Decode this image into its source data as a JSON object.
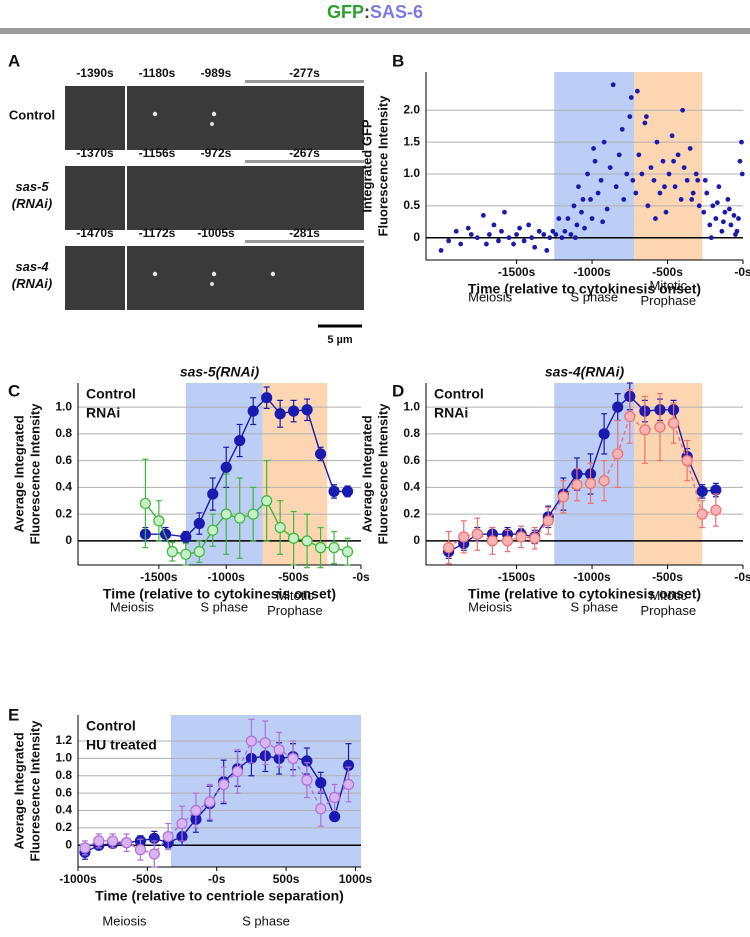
{
  "figure_title": {
    "parts": [
      {
        "text": "GFP",
        "color": "#2ca02c"
      },
      {
        "text": ":",
        "color": "#444444"
      },
      {
        "text": "SAS-6",
        "color": "#7b7be6"
      }
    ]
  },
  "panel_a": {
    "panel": "A",
    "rows": [
      {
        "label": [
          "Control"
        ],
        "color": "#1a1ab0",
        "times": [
          "-1390s",
          "-1180s",
          "-989s",
          "-277s"
        ]
      },
      {
        "label": [
          "sas-5",
          "(RNAi)"
        ],
        "color": "#3cb83c",
        "times": [
          "-1370s",
          "-1156s",
          "-972s",
          "-267s"
        ]
      },
      {
        "label": [
          "sas-4",
          "(RNAi)"
        ],
        "color": "#f07070",
        "times": [
          "-1470s",
          "-1172s",
          "-1005s",
          "-281s"
        ]
      }
    ],
    "scale_bar": "5 µm"
  },
  "chart_data": [
    {
      "type": "scatter",
      "panel": "B",
      "ylabel": [
        "Integrated GFP",
        "Fluorescence Intensity"
      ],
      "xlabel": "Time (relative to cytokinesis onset)",
      "xlim": [
        -2100,
        0
      ],
      "ylim": [
        -0.35,
        2.6
      ],
      "xticks": [
        {
          "value": -1500,
          "label": "-1500s"
        },
        {
          "value": -1000,
          "label": "-1000s"
        },
        {
          "value": -500,
          "label": "-500s"
        },
        {
          "value": 0,
          "label": "-0s"
        }
      ],
      "yticks": [
        0,
        0.5,
        {
          "value": 1,
          "label": "1.0"
        },
        {
          "value": 1.5,
          "label": "1.5"
        },
        {
          "value": 2,
          "label": "2.0"
        }
      ],
      "grid": true,
      "reference_line": 0,
      "phases": [
        {
          "label": [
            "Meiosis"
          ],
          "text_color": "#111111"
        },
        {
          "label": [
            "S phase"
          ],
          "start": -1250,
          "end": -720,
          "color": "#bccdf6",
          "text_color": "#3a5fc8"
        },
        {
          "label": [
            "Mitotic",
            "Prophase"
          ],
          "start": -720,
          "end": -270,
          "color": "#fcd6b2",
          "text_color": "#e07020"
        }
      ],
      "series": [
        {
          "color": "#1a1ab0",
          "x": [
            -2000,
            -1950,
            -1900,
            -1870,
            -1820,
            -1800,
            -1760,
            -1720,
            -1700,
            -1680,
            -1650,
            -1620,
            -1600,
            -1580,
            -1550,
            -1520,
            -1500,
            -1480,
            -1450,
            -1420,
            -1400,
            -1380,
            -1350,
            -1320,
            -1300,
            -1280,
            -1260,
            -1240,
            -1220,
            -1200,
            -1180,
            -1160,
            -1140,
            -1120,
            -1100,
            -1090,
            -1070,
            -1050,
            -1030,
            -1010,
            -1000,
            -980,
            -960,
            -940,
            -920,
            -900,
            -880,
            -860,
            -840,
            -820,
            -800,
            -790,
            -770,
            -750,
            -740,
            -730,
            -1110,
            -1060,
            -990,
            -930,
            -710,
            -690,
            -670,
            -650,
            -630,
            -610,
            -590,
            -570,
            -550,
            -530,
            -510,
            -490,
            -470,
            -450,
            -430,
            -410,
            -390,
            -370,
            -350,
            -330,
            -310,
            -290,
            -700,
            -640,
            -580,
            -520,
            -460,
            -400,
            -340,
            -300,
            -260,
            -240,
            -220,
            -200,
            -180,
            -160,
            -140,
            -120,
            -100,
            -80,
            -60,
            -40,
            -20,
            -10,
            -250,
            -210,
            -170,
            -130,
            -90,
            -50,
            -30,
            -5
          ],
          "values": [
            -0.2,
            -0.05,
            0.1,
            -0.1,
            0.15,
            0.05,
            0.0,
            0.35,
            -0.1,
            0.05,
            0.2,
            -0.05,
            0.1,
            0.4,
            0.0,
            -0.1,
            0.05,
            0.15,
            -0.05,
            0.2,
            0.0,
            -0.15,
            0.1,
            0.05,
            -0.2,
            0.0,
            0.1,
            0.05,
            0.3,
            0.0,
            0.1,
            0.3,
            0.05,
            0.5,
            0.2,
            0.8,
            0.4,
            0.15,
            1.0,
            0.6,
            0.3,
            1.2,
            0.7,
            0.9,
            1.5,
            0.45,
            1.1,
            2.4,
            0.8,
            1.3,
            1.7,
            0.6,
            1.0,
            1.9,
            2.2,
            0.9,
            0.0,
            0.6,
            1.4,
            0.25,
            0.7,
            1.3,
            1.0,
            1.8,
            0.5,
            1.1,
            0.9,
            1.5,
            0.7,
            1.2,
            0.4,
            1.0,
            1.6,
            0.8,
            1.3,
            0.6,
            1.1,
            0.9,
            1.4,
            0.7,
            1.0,
            0.5,
            2.3,
            1.9,
            0.3,
            0.8,
            1.2,
            2.0,
            0.6,
            0.9,
            0.4,
            0.7,
            0.2,
            0.5,
            0.3,
            0.8,
            0.1,
            0.4,
            0.6,
            0.2,
            0.35,
            0.1,
            1.2,
            1.5,
            0.9,
            0.0,
            0.55,
            0.25,
            0.45,
            0.05,
            0.3,
            1.0
          ]
        }
      ]
    },
    {
      "type": "line",
      "panel": "C",
      "title": "sas-5(RNAi)",
      "title_color": "#3cb83c",
      "ylabel": [
        "Average Integrated",
        "Fluorescence Intensity"
      ],
      "xlabel": "Time (relative to cytokinesis onset)",
      "xlim": [
        -2100,
        0
      ],
      "ylim": [
        -0.18,
        1.18
      ],
      "xticks": [
        {
          "value": -1500,
          "label": "-1500s"
        },
        {
          "value": -1000,
          "label": "-1000s"
        },
        {
          "value": -500,
          "label": "-500s"
        },
        {
          "value": 0,
          "label": "-0s"
        }
      ],
      "yticks": [
        0,
        0.2,
        0.4,
        0.6,
        0.8,
        {
          "value": 1,
          "label": "1.0"
        }
      ],
      "grid": true,
      "reference_line": 0,
      "phases": [
        {
          "label": [
            "Meiosis"
          ],
          "text_color": "#111111"
        },
        {
          "label": [
            "S phase"
          ],
          "start": -1300,
          "end": -730,
          "color": "#bccdf6",
          "text_color": "#3a5fc8"
        },
        {
          "label": [
            "Mitotic",
            "Prophase"
          ],
          "start": -730,
          "end": -250,
          "color": "#fcd6b2",
          "text_color": "#e07020"
        }
      ],
      "series": [
        {
          "name": "Control",
          "color": "#1a1ab0",
          "marker_fill": "#1a1ab0",
          "line_style": "solid",
          "x": [
            -1600,
            -1450,
            -1300,
            -1200,
            -1100,
            -1000,
            -900,
            -800,
            -700,
            -600,
            -500,
            -400,
            -300,
            -200,
            -100
          ],
          "values": [
            0.05,
            0.05,
            0.03,
            0.13,
            0.35,
            0.55,
            0.75,
            0.97,
            1.07,
            0.95,
            0.97,
            0.98,
            0.65,
            0.37,
            0.37
          ],
          "errors": [
            0.05,
            0.05,
            0.04,
            0.08,
            0.12,
            0.15,
            0.12,
            0.1,
            0.08,
            0.1,
            0.08,
            0.08,
            0.05,
            0.05,
            0.04
          ]
        },
        {
          "name": "RNAi",
          "color": "#3cb83c",
          "marker_fill": "#c8f0c8",
          "line_style": "solid",
          "x": [
            -1600,
            -1500,
            -1400,
            -1300,
            -1200,
            -1100,
            -1000,
            -900,
            -800,
            -700,
            -600,
            -500,
            -400,
            -300,
            -200,
            -100
          ],
          "values": [
            0.28,
            0.15,
            -0.08,
            -0.1,
            -0.08,
            0.08,
            0.2,
            0.17,
            0.2,
            0.3,
            0.1,
            0.02,
            0.0,
            -0.05,
            -0.05,
            -0.08
          ],
          "errors": [
            0.33,
            0.15,
            0.07,
            0.08,
            0.08,
            0.12,
            0.3,
            0.3,
            0.2,
            0.3,
            0.2,
            0.2,
            0.2,
            0.15,
            0.12,
            0.1
          ]
        }
      ]
    },
    {
      "type": "line",
      "panel": "D",
      "title": "sas-4(RNAi)",
      "title_color": "#f07070",
      "ylabel": [
        "Average Integrated",
        "Fluorescence Intensity"
      ],
      "xlabel": "Time (relative to cytokinesis onset)",
      "xlim": [
        -2100,
        0
      ],
      "ylim": [
        -0.18,
        1.18
      ],
      "xticks": [
        {
          "value": -1500,
          "label": "-1500s"
        },
        {
          "value": -1000,
          "label": "-1000s"
        },
        {
          "value": -500,
          "label": "-500s"
        },
        {
          "value": 0,
          "label": "-0s"
        }
      ],
      "yticks": [
        0,
        0.2,
        0.4,
        0.6,
        0.8,
        {
          "value": 1,
          "label": "1.0"
        }
      ],
      "grid": true,
      "reference_line": 0,
      "phases": [
        {
          "label": [
            "Meiosis"
          ],
          "text_color": "#111111"
        },
        {
          "label": [
            "S phase"
          ],
          "start": -1250,
          "end": -720,
          "color": "#bccdf6",
          "text_color": "#3a5fc8"
        },
        {
          "label": [
            "Mitotic",
            "Prophase"
          ],
          "start": -720,
          "end": -270,
          "color": "#fcd6b2",
          "text_color": "#e07020"
        }
      ],
      "series": [
        {
          "name": "Control",
          "color": "#1a1ab0",
          "marker_fill": "#1a1ab0",
          "line_style": "solid",
          "x": [
            -1950,
            -1850,
            -1760,
            -1660,
            -1560,
            -1470,
            -1380,
            -1290,
            -1190,
            -1100,
            -1010,
            -920,
            -830,
            -750,
            -650,
            -550,
            -460,
            -370,
            -270,
            -180
          ],
          "values": [
            -0.08,
            -0.02,
            0.05,
            0.05,
            0.05,
            0.05,
            0.03,
            0.18,
            0.35,
            0.5,
            0.5,
            0.8,
            1.0,
            1.08,
            0.97,
            0.98,
            0.98,
            0.63,
            0.37,
            0.38
          ],
          "errors": [
            0.05,
            0.05,
            0.05,
            0.05,
            0.05,
            0.04,
            0.05,
            0.08,
            0.12,
            0.12,
            0.15,
            0.15,
            0.1,
            0.1,
            0.08,
            0.08,
            0.07,
            0.06,
            0.05,
            0.05
          ]
        },
        {
          "name": "RNAi",
          "color": "#f07070",
          "marker_fill": "#f8b4b4",
          "line_style": "dashed",
          "x": [
            -1950,
            -1850,
            -1760,
            -1660,
            -1560,
            -1470,
            -1380,
            -1290,
            -1190,
            -1100,
            -1010,
            -920,
            -830,
            -750,
            -650,
            -550,
            -460,
            -370,
            -270,
            -180
          ],
          "values": [
            -0.05,
            0.03,
            0.05,
            0.0,
            0.0,
            0.03,
            0.02,
            0.15,
            0.33,
            0.42,
            0.43,
            0.45,
            0.65,
            0.93,
            0.83,
            0.85,
            0.88,
            0.6,
            0.2,
            0.23
          ],
          "errors": [
            0.12,
            0.12,
            0.12,
            0.1,
            0.08,
            0.08,
            0.08,
            0.1,
            0.12,
            0.12,
            0.15,
            0.15,
            0.25,
            0.2,
            0.25,
            0.25,
            0.15,
            0.15,
            0.1,
            0.12
          ]
        }
      ]
    },
    {
      "type": "line",
      "panel": "E",
      "ylabel": [
        "Average Integrated",
        "Fluorescence Intensity"
      ],
      "xlabel": "Time (relative to centriole separation)",
      "xlim": [
        -1000,
        1040
      ],
      "ylim": [
        -0.25,
        1.5
      ],
      "xticks": [
        {
          "value": -1000,
          "label": "-1000s"
        },
        {
          "value": -500,
          "label": "-500s"
        },
        {
          "value": 0,
          "label": "-0s"
        },
        {
          "value": 500,
          "label": "500s"
        },
        {
          "value": 1000,
          "label": "1000s"
        }
      ],
      "yticks": [
        0,
        0.2,
        0.4,
        0.6,
        0.8,
        {
          "value": 1,
          "label": "1.0"
        },
        1.2
      ],
      "grid": true,
      "reference_line": 0,
      "phases": [
        {
          "label": [
            "Meiosis"
          ],
          "text_color": "#111111"
        },
        {
          "label": [
            "S phase"
          ],
          "start": -330,
          "end": 1040,
          "color": "#bccdf6",
          "text_color": "#3a5fc8"
        }
      ],
      "series": [
        {
          "name": "Control",
          "color": "#1a1ab0",
          "marker_fill": "#1a1ab0",
          "line_style": "solid",
          "x": [
            -950,
            -850,
            -750,
            -650,
            -550,
            -450,
            -350,
            -250,
            -150,
            -50,
            50,
            150,
            250,
            350,
            450,
            550,
            650,
            750,
            850,
            950
          ],
          "values": [
            -0.08,
            0.0,
            0.02,
            0.03,
            0.05,
            0.08,
            0.03,
            0.1,
            0.3,
            0.48,
            0.73,
            0.88,
            1.0,
            1.03,
            1.0,
            1.02,
            0.97,
            0.72,
            0.33,
            0.92
          ],
          "errors": [
            0.08,
            0.05,
            0.05,
            0.05,
            0.06,
            0.08,
            0.06,
            0.1,
            0.15,
            0.2,
            0.25,
            0.2,
            0.2,
            0.18,
            0.18,
            0.15,
            0.15,
            0.12,
            0.05,
            0.25
          ]
        },
        {
          "name": "HU treated",
          "color": "#b070d8",
          "marker_fill": "#d8b4f0",
          "line_style": "dashed",
          "x": [
            -950,
            -850,
            -750,
            -650,
            -550,
            -450,
            -350,
            -250,
            -150,
            -50,
            50,
            150,
            250,
            350,
            450,
            550,
            650,
            750,
            850,
            950
          ],
          "values": [
            -0.03,
            0.05,
            0.05,
            0.03,
            -0.05,
            -0.1,
            0.1,
            0.25,
            0.4,
            0.5,
            0.7,
            0.85,
            1.2,
            1.18,
            1.1,
            1.0,
            0.75,
            0.42,
            0.55,
            0.7
          ],
          "errors": [
            0.08,
            0.08,
            0.08,
            0.1,
            0.12,
            0.15,
            0.15,
            0.2,
            0.2,
            0.2,
            0.2,
            0.25,
            0.25,
            0.25,
            0.2,
            0.2,
            0.2,
            0.2,
            0.15,
            0.2
          ]
        }
      ]
    }
  ]
}
